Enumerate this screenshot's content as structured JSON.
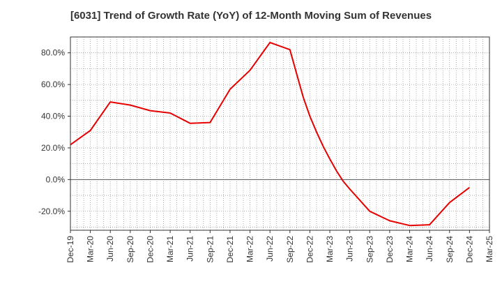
{
  "chart_data": {
    "type": "line",
    "title": "[6031]  Trend of Growth Rate (YoY) of 12-Month Moving Sum of Revenues",
    "xlabel": "",
    "ylabel": "",
    "x_tick_labels": [
      "Dec-19",
      "Mar-20",
      "Jun-20",
      "Sep-20",
      "Dec-20",
      "Mar-21",
      "Jun-21",
      "Sep-21",
      "Dec-21",
      "Mar-22",
      "Jun-22",
      "Sep-22",
      "Dec-22",
      "Mar-23",
      "Jun-23",
      "Sep-23",
      "Dec-23",
      "Mar-24",
      "Jun-24",
      "Sep-24",
      "Dec-24",
      "Mar-25"
    ],
    "y_tick_labels": [
      "-20.0%",
      "0.0%",
      "20.0%",
      "40.0%",
      "60.0%",
      "80.0%"
    ],
    "y_ticks": [
      -20,
      0,
      20,
      40,
      60,
      80
    ],
    "ylim": [
      -32,
      90
    ],
    "grid": true,
    "series": [
      {
        "color": "#e60000",
        "x": [
          "Dec-19",
          "Mar-20",
          "Jun-20",
          "Sep-20",
          "Dec-20",
          "Mar-21",
          "Jun-21",
          "Sep-21",
          "Dec-21",
          "Mar-22",
          "Jun-22",
          "Sep-22",
          "Oct-22",
          "Nov-22",
          "Dec-22",
          "Jan-23",
          "Feb-23",
          "Mar-23",
          "Apr-23",
          "May-23",
          "Jun-23",
          "Sep-23",
          "Dec-23",
          "Mar-24",
          "Jun-24",
          "Sep-24",
          "Dec-24"
        ],
        "values": [
          22.0,
          31.0,
          49.0,
          47.0,
          43.5,
          42.0,
          35.5,
          36.0,
          57.0,
          69.0,
          86.5,
          82.0,
          67.0,
          52.0,
          40.0,
          30.0,
          21.0,
          13.0,
          5.5,
          -1.0,
          -6.0,
          -20.0,
          -26.0,
          -29.0,
          -28.5,
          -14.5,
          -5.0
        ]
      }
    ]
  }
}
